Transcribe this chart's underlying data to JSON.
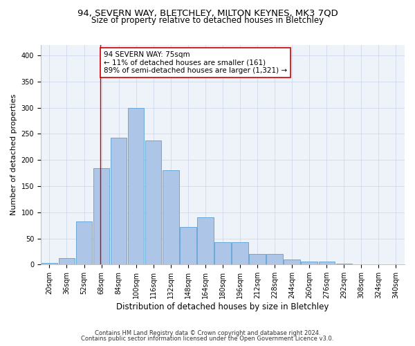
{
  "title1": "94, SEVERN WAY, BLETCHLEY, MILTON KEYNES, MK3 7QD",
  "title2": "Size of property relative to detached houses in Bletchley",
  "xlabel": "Distribution of detached houses by size in Bletchley",
  "ylabel": "Number of detached properties",
  "footnote1": "Contains HM Land Registry data © Crown copyright and database right 2024.",
  "footnote2": "Contains public sector information licensed under the Open Government Licence v3.0.",
  "bin_labels": [
    "20sqm",
    "36sqm",
    "52sqm",
    "68sqm",
    "84sqm",
    "100sqm",
    "116sqm",
    "132sqm",
    "148sqm",
    "164sqm",
    "180sqm",
    "196sqm",
    "212sqm",
    "228sqm",
    "244sqm",
    "260sqm",
    "276sqm",
    "292sqm",
    "308sqm",
    "324sqm",
    "340sqm"
  ],
  "bar_heights": [
    3,
    12,
    82,
    185,
    243,
    300,
    238,
    181,
    72,
    90,
    43,
    43,
    20,
    20,
    10,
    6,
    6,
    2,
    1,
    0,
    1
  ],
  "bin_edges": [
    20,
    36,
    52,
    68,
    84,
    100,
    116,
    132,
    148,
    164,
    180,
    196,
    212,
    228,
    244,
    260,
    276,
    292,
    308,
    324,
    340,
    356
  ],
  "bar_color": "#adc6e8",
  "bar_edge_color": "#5a9fd4",
  "vline_x": 75,
  "vline_color": "#cc0000",
  "annotation_line1": "94 SEVERN WAY: 75sqm",
  "annotation_line2": "← 11% of detached houses are smaller (161)",
  "annotation_line3": "89% of semi-detached houses are larger (1,321) →",
  "annotation_box_color": "#ffffff",
  "annotation_box_edge": "#cc0000",
  "ylim": [
    0,
    420
  ],
  "yticks": [
    0,
    50,
    100,
    150,
    200,
    250,
    300,
    350,
    400
  ],
  "plot_bg_color": "#eef2f9",
  "title1_fontsize": 9.5,
  "title2_fontsize": 8.5,
  "xlabel_fontsize": 8.5,
  "ylabel_fontsize": 8,
  "annot_fontsize": 7.5,
  "tick_fontsize": 7,
  "footnote_fontsize": 6
}
